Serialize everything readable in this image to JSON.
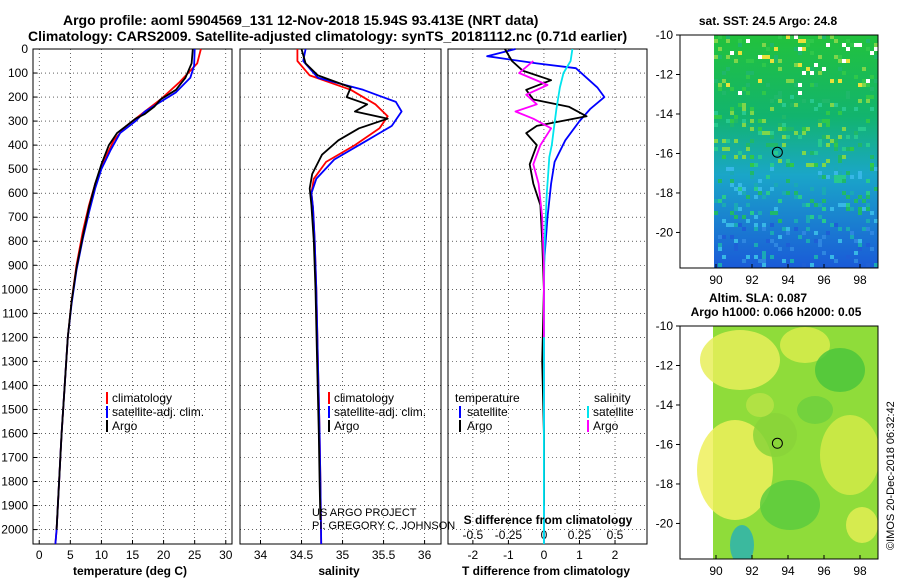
{
  "header": {
    "line1": "Argo profile: aoml 5904569_131 12-Nov-2018 15.94S 93.413E (NRT data)",
    "line2": "Climatology: CARS2009. Satellite-adjusted climatology: synTS_20181112.nc (0.71d earlier)"
  },
  "colors": {
    "climatology": "#ff0000",
    "satellite": "#0000ff",
    "argo": "#000000",
    "satellite_salinity": "#00e5ee",
    "argo_salinity": "#ff00ff"
  },
  "chart_data": [
    {
      "id": "temperature",
      "type": "line",
      "xlabel": "temperature (deg C)",
      "ylabel": "",
      "xlim": [
        -1,
        31
      ],
      "ylim": [
        2060,
        0
      ],
      "xticks": [
        "0",
        "5",
        "10",
        "15",
        "20",
        "25",
        "30"
      ],
      "yticks": [
        "0",
        "100",
        "200",
        "300",
        "400",
        "500",
        "600",
        "700",
        "800",
        "900",
        "1000",
        "1100",
        "1200",
        "1300",
        "1400",
        "1500",
        "1600",
        "1700",
        "1800",
        "1900",
        "2000"
      ],
      "legend": [
        "climatology",
        "satellite-adj. clim.",
        "Argo"
      ],
      "series": [
        {
          "name": "climatology",
          "points": [
            [
              26,
              0
            ],
            [
              25.4,
              60
            ],
            [
              22.5,
              140
            ],
            [
              19.5,
              210
            ],
            [
              16.5,
              270
            ],
            [
              14,
              320
            ],
            [
              12,
              380
            ],
            [
              10.5,
              460
            ],
            [
              9,
              560
            ],
            [
              8,
              650
            ],
            [
              7,
              760
            ],
            [
              6,
              900
            ],
            [
              5.2,
              1050
            ],
            [
              4.6,
              1200
            ],
            [
              4.1,
              1400
            ],
            [
              3.6,
              1600
            ],
            [
              3.2,
              1800
            ],
            [
              2.8,
              2000
            ],
            [
              2.6,
              2060
            ]
          ]
        },
        {
          "name": "satellite-adj. clim.",
          "points": [
            [
              25,
              0
            ],
            [
              24.9,
              70
            ],
            [
              24.3,
              120
            ],
            [
              22,
              180
            ],
            [
              19.5,
              220
            ],
            [
              17,
              260
            ],
            [
              15.5,
              300
            ],
            [
              13,
              350
            ],
            [
              11.5,
              420
            ],
            [
              10,
              500
            ],
            [
              9,
              580
            ],
            [
              8,
              680
            ],
            [
              7,
              790
            ],
            [
              6,
              920
            ],
            [
              5.2,
              1060
            ],
            [
              4.6,
              1200
            ],
            [
              4.1,
              1400
            ],
            [
              3.6,
              1600
            ],
            [
              3.2,
              1800
            ],
            [
              2.8,
              2000
            ],
            [
              2.6,
              2060
            ]
          ]
        },
        {
          "name": "Argo",
          "points": [
            [
              24.7,
              0
            ],
            [
              24.5,
              60
            ],
            [
              23.5,
              120
            ],
            [
              22,
              170
            ],
            [
              19.5,
              210
            ],
            [
              18.5,
              240
            ],
            [
              17,
              270
            ],
            [
              15.5,
              290
            ],
            [
              14.5,
              310
            ],
            [
              12.5,
              350
            ],
            [
              11.2,
              400
            ],
            [
              10,
              480
            ],
            [
              9,
              560
            ],
            [
              8,
              660
            ],
            [
              7,
              780
            ],
            [
              6,
              910
            ],
            [
              5.2,
              1050
            ],
            [
              4.6,
              1200
            ],
            [
              4.1,
              1400
            ],
            [
              3.6,
              1600
            ],
            [
              3.2,
              1800
            ],
            [
              2.8,
              2000
            ]
          ]
        }
      ]
    },
    {
      "id": "salinity",
      "type": "line",
      "xlabel": "salinity",
      "xlim": [
        33.75,
        36.2
      ],
      "ylim": [
        2060,
        0
      ],
      "xticks": [
        "34",
        "34.5",
        "35",
        "35.5",
        "36"
      ],
      "legend": [
        "climatology",
        "satellite-adj. clim.",
        "Argo"
      ],
      "annotations": [
        "US ARGO PROJECT",
        "PI: GREGORY C. JOHNSON"
      ],
      "series": [
        {
          "name": "climatology",
          "points": [
            [
              34.45,
              0
            ],
            [
              34.45,
              50
            ],
            [
              34.6,
              110
            ],
            [
              35.1,
              170
            ],
            [
              35.4,
              230
            ],
            [
              35.55,
              280
            ],
            [
              35.45,
              330
            ],
            [
              35.15,
              400
            ],
            [
              34.8,
              470
            ],
            [
              34.65,
              540
            ],
            [
              34.62,
              600
            ],
            [
              34.64,
              660
            ],
            [
              34.66,
              800
            ],
            [
              34.68,
              1000
            ],
            [
              34.7,
              1300
            ],
            [
              34.72,
              1600
            ],
            [
              34.73,
              1800
            ],
            [
              34.74,
              2060
            ]
          ]
        },
        {
          "name": "satellite-adj. clim.",
          "points": [
            [
              34.55,
              0
            ],
            [
              34.52,
              50
            ],
            [
              34.7,
              120
            ],
            [
              35.25,
              170
            ],
            [
              35.65,
              220
            ],
            [
              35.72,
              260
            ],
            [
              35.6,
              320
            ],
            [
              35.3,
              380
            ],
            [
              34.9,
              460
            ],
            [
              34.68,
              540
            ],
            [
              34.62,
              600
            ],
            [
              34.64,
              660
            ],
            [
              34.66,
              800
            ],
            [
              34.68,
              1000
            ],
            [
              34.7,
              1300
            ],
            [
              34.72,
              1600
            ],
            [
              34.73,
              1800
            ],
            [
              34.74,
              2060
            ]
          ]
        },
        {
          "name": "Argo",
          "points": [
            [
              34.5,
              0
            ],
            [
              34.55,
              60
            ],
            [
              34.7,
              110
            ],
            [
              35.1,
              160
            ],
            [
              35.05,
              200
            ],
            [
              35.3,
              230
            ],
            [
              35.15,
              260
            ],
            [
              35.55,
              290
            ],
            [
              35.2,
              330
            ],
            [
              34.95,
              380
            ],
            [
              34.75,
              440
            ],
            [
              34.63,
              520
            ],
            [
              34.6,
              580
            ],
            [
              34.62,
              650
            ],
            [
              34.65,
              800
            ],
            [
              34.67,
              1000
            ],
            [
              34.69,
              1300
            ],
            [
              34.71,
              1600
            ],
            [
              34.72,
              1800
            ],
            [
              34.73,
              1960
            ]
          ]
        }
      ]
    },
    {
      "id": "difference",
      "type": "line",
      "xlabel": "T difference from climatology",
      "title_inside": "S difference from climatology",
      "xlim": [
        -2.7,
        2.9
      ],
      "ylim": [
        2060,
        0
      ],
      "xticks": [
        "-2",
        "-1",
        "0",
        "1",
        "2"
      ],
      "xticks_top": [
        "-0.5",
        "-0.25",
        "0",
        "0.25",
        "0.5"
      ],
      "legend_left_title": "temperature",
      "legend_right_title": "salinity",
      "legend_left": [
        "satellite",
        "Argo"
      ],
      "legend_right": [
        "satellite",
        "Argo"
      ],
      "series": [
        {
          "name": "T satellite",
          "points": [
            [
              -0.8,
              0
            ],
            [
              -1.6,
              30
            ],
            [
              -0.2,
              60
            ],
            [
              0.9,
              80
            ],
            [
              1.2,
              120
            ],
            [
              1.5,
              160
            ],
            [
              1.7,
              200
            ],
            [
              1.3,
              250
            ],
            [
              1.0,
              300
            ],
            [
              0.6,
              380
            ],
            [
              0.3,
              470
            ],
            [
              0.2,
              560
            ],
            [
              0.1,
              700
            ],
            [
              0,
              900
            ],
            [
              0,
              1300
            ],
            [
              0,
              1700
            ],
            [
              0,
              2060
            ]
          ]
        },
        {
          "name": "T Argo",
          "points": [
            [
              -1.1,
              0
            ],
            [
              -0.9,
              50
            ],
            [
              -0.6,
              90
            ],
            [
              0.2,
              130
            ],
            [
              -0.5,
              170
            ],
            [
              -0.3,
              210
            ],
            [
              0.7,
              240
            ],
            [
              1.2,
              280
            ],
            [
              -0.2,
              320
            ],
            [
              -0.5,
              350
            ],
            [
              -0.2,
              400
            ],
            [
              -0.4,
              480
            ],
            [
              -0.3,
              560
            ],
            [
              -0.1,
              650
            ],
            [
              -0.05,
              800
            ],
            [
              0,
              1000
            ],
            [
              -0.05,
              1300
            ],
            [
              0,
              1600
            ],
            [
              0,
              1900
            ]
          ]
        },
        {
          "name": "S satellite",
          "points": [
            [
              0.8,
              0
            ],
            [
              0.75,
              50
            ],
            [
              0.55,
              100
            ],
            [
              0.45,
              160
            ],
            [
              0.35,
              250
            ],
            [
              0.28,
              330
            ],
            [
              0.22,
              400
            ],
            [
              0.15,
              450
            ],
            [
              0.12,
              520
            ],
            [
              0.08,
              600
            ],
            [
              0.02,
              800
            ],
            [
              0,
              1000
            ],
            [
              0,
              1500
            ],
            [
              0,
              2060
            ]
          ]
        },
        {
          "name": "S Argo",
          "points": [
            [
              -0.3,
              50
            ],
            [
              -0.7,
              100
            ],
            [
              0.1,
              150
            ],
            [
              -0.5,
              190
            ],
            [
              -0.2,
              230
            ],
            [
              -0.8,
              260
            ],
            [
              -0.3,
              290
            ],
            [
              0.2,
              330
            ],
            [
              -0.1,
              400
            ],
            [
              -0.3,
              480
            ],
            [
              -0.15,
              560
            ],
            [
              -0.05,
              700
            ],
            [
              0,
              900
            ],
            [
              0,
              1200
            ]
          ]
        }
      ]
    },
    {
      "id": "sst_map",
      "type": "heatmap",
      "title": "sat. SST: 24.5 Argo: 24.8",
      "xlim": [
        88,
        99
      ],
      "ylim": [
        -21.8,
        -10
      ],
      "xticks": [
        "90",
        "92",
        "94",
        "96",
        "98"
      ],
      "yticks": [
        "-10",
        "-12",
        "-14",
        "-16",
        "-18",
        "-20"
      ],
      "marker": [
        93.41,
        -15.94
      ]
    },
    {
      "id": "sla_map",
      "type": "heatmap",
      "title": "Altim. SLA: 0.087",
      "subtitle": "Argo h1000: 0.066 h2000: 0.05",
      "xlim": [
        88,
        99
      ],
      "ylim": [
        -21.8,
        -10
      ],
      "xticks": [
        "90",
        "92",
        "94",
        "96",
        "98"
      ],
      "yticks": [
        "-10",
        "-12",
        "-14",
        "-16",
        "-18",
        "-20"
      ],
      "marker": [
        93.41,
        -15.94
      ]
    }
  ],
  "credit": "©IMOS 20-Dec-2018 06:32:42"
}
